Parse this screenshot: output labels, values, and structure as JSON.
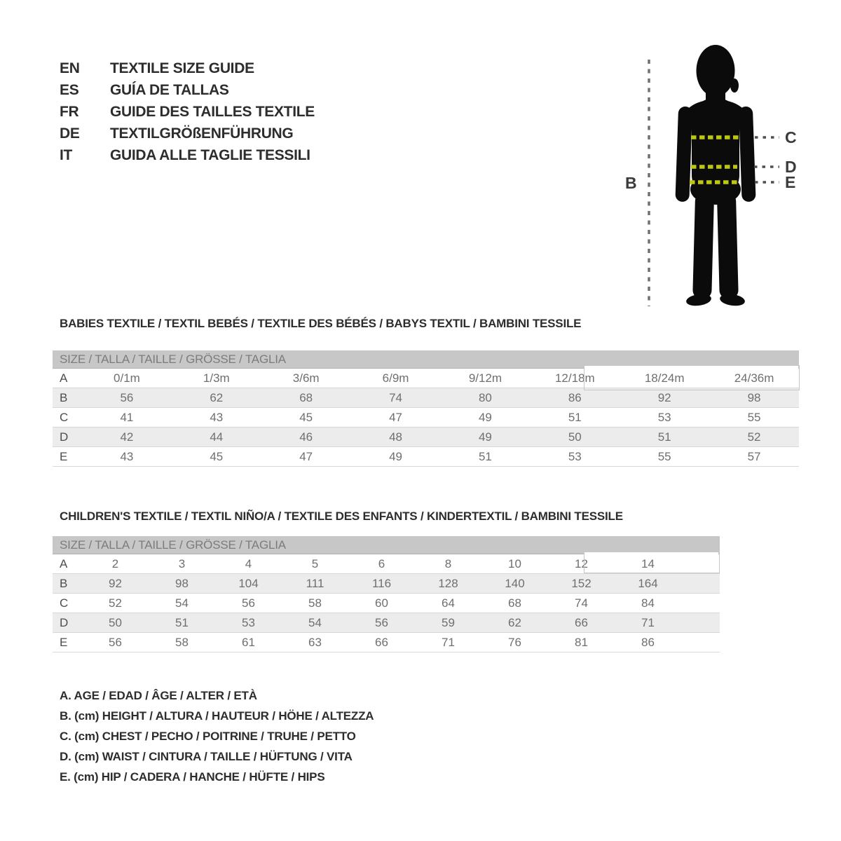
{
  "languages": [
    {
      "code": "EN",
      "label": "TEXTILE SIZE GUIDE"
    },
    {
      "code": "ES",
      "label": "GUÍA DE TALLAS"
    },
    {
      "code": "FR",
      "label": "GUIDE DES TAILLES TEXTILE"
    },
    {
      "code": "DE",
      "label": "TEXTILGRÖßENFÜHRUNG"
    },
    {
      "code": "IT",
      "label": "GUIDA ALLE TAGLIE TESSILI"
    }
  ],
  "figure": {
    "labels": {
      "height": "B",
      "chest": "C",
      "waist": "D",
      "hip": "E"
    },
    "colors": {
      "silhouette": "#0b0b0b",
      "measure_line": "#bcc70e",
      "extension_line": "#4f4f4f",
      "height_line": "#707070"
    }
  },
  "babies": {
    "title": "BABIES TEXTILE / TEXTIL BEBÉS / TEXTILE DES BÉBÉS / BABYS TEXTIL  / BAMBINI TESSILE",
    "table": {
      "header": "SIZE / TALLA / TAILLE / GRÖSSE / TAGLIA",
      "rows": [
        {
          "label": "A",
          "values": [
            "0/1m",
            "1/3m",
            "3/6m",
            "6/9m",
            "9/12m",
            "12/18m",
            "18/24m",
            "24/36m"
          ]
        },
        {
          "label": "B",
          "values": [
            "56",
            "62",
            "68",
            "74",
            "80",
            "86",
            "92",
            "98"
          ]
        },
        {
          "label": "C",
          "values": [
            "41",
            "43",
            "45",
            "47",
            "49",
            "51",
            "53",
            "55"
          ]
        },
        {
          "label": "D",
          "values": [
            "42",
            "44",
            "46",
            "48",
            "49",
            "50",
            "51",
            "52"
          ]
        },
        {
          "label": "E",
          "values": [
            "43",
            "45",
            "47",
            "49",
            "51",
            "53",
            "55",
            "57"
          ]
        }
      ]
    }
  },
  "children": {
    "title": "CHILDREN'S TEXTILE / TEXTIL NIÑO/A / TEXTILE DES ENFANTS / KINDERTEXTIL / BAMBINI TESSILE",
    "table": {
      "header": "SIZE / TALLA / TAILLE / GRÖSSE / TAGLIA",
      "rows": [
        {
          "label": "A",
          "values": [
            "2",
            "3",
            "4",
            "5",
            "6",
            "8",
            "10",
            "12",
            "14"
          ]
        },
        {
          "label": "B",
          "values": [
            "92",
            "98",
            "104",
            "111",
            "116",
            "128",
            "140",
            "152",
            "164"
          ]
        },
        {
          "label": "C",
          "values": [
            "52",
            "54",
            "56",
            "58",
            "60",
            "64",
            "68",
            "74",
            "84"
          ]
        },
        {
          "label": "D",
          "values": [
            "50",
            "51",
            "53",
            "54",
            "56",
            "59",
            "62",
            "66",
            "71"
          ]
        },
        {
          "label": "E",
          "values": [
            "56",
            "58",
            "61",
            "63",
            "66",
            "71",
            "76",
            "81",
            "86"
          ]
        }
      ]
    }
  },
  "legend": [
    "A. AGE / EDAD / ÂGE / ALTER / ETÀ",
    "B. (cm) HEIGHT / ALTURA / HAUTEUR / HÖHE / ALTEZZA",
    "C. (cm) CHEST / PECHO / POITRINE / TRUHE / PETTO",
    "D. (cm) WAIST / CINTURA / TAILLE / HÜFTUNG / VITA",
    "E. (cm) HIP / CADERA / HANCHE / HÜFTE / HIPS"
  ]
}
